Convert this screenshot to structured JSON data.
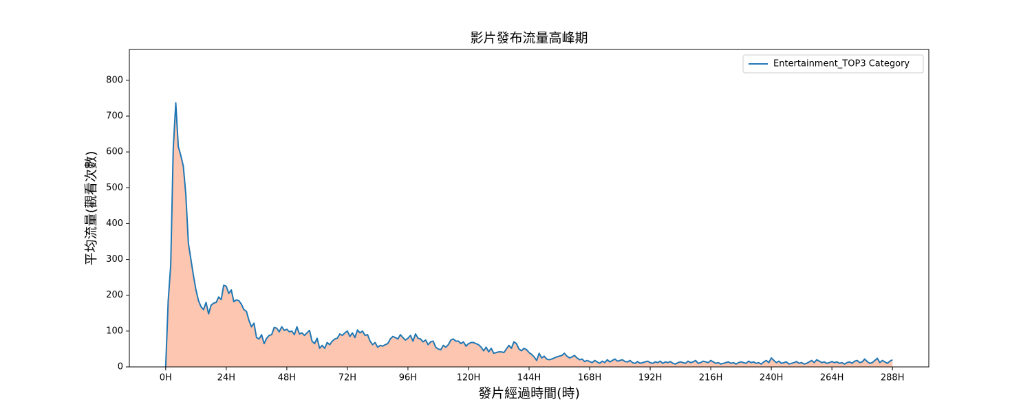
{
  "chart_data": {
    "type": "area",
    "title": "影片發布流量高峰期",
    "x_label": "發片經過時間(時)",
    "y_label": "平均流量(觀看次數)",
    "x": [
      0,
      1,
      2,
      3,
      4,
      5,
      6,
      7,
      8,
      9,
      10,
      11,
      12,
      13,
      14,
      15,
      16,
      17,
      18,
      19,
      20,
      21,
      22,
      23,
      24,
      25,
      26,
      27,
      28,
      29,
      30,
      31,
      32,
      33,
      34,
      35,
      36,
      37,
      38,
      39,
      40,
      41,
      42,
      43,
      44,
      45,
      46,
      47,
      48,
      49,
      50,
      51,
      52,
      53,
      54,
      55,
      56,
      57,
      58,
      59,
      60,
      61,
      62,
      63,
      64,
      65,
      66,
      67,
      68,
      69,
      70,
      71,
      72,
      73,
      74,
      75,
      76,
      77,
      78,
      79,
      80,
      81,
      82,
      83,
      84,
      85,
      86,
      87,
      88,
      89,
      90,
      91,
      92,
      93,
      94,
      95,
      96,
      97,
      98,
      99,
      100,
      101,
      102,
      103,
      104,
      105,
      106,
      107,
      108,
      109,
      110,
      111,
      112,
      113,
      114,
      115,
      116,
      117,
      118,
      119,
      120,
      121,
      122,
      123,
      124,
      125,
      126,
      127,
      128,
      129,
      130,
      131,
      132,
      133,
      134,
      135,
      136,
      137,
      138,
      139,
      140,
      141,
      142,
      143,
      144,
      145,
      146,
      147,
      148,
      149,
      150,
      151,
      152,
      153,
      154,
      155,
      156,
      157,
      158,
      159,
      160,
      161,
      162,
      163,
      164,
      165,
      166,
      167,
      168,
      169,
      170,
      171,
      172,
      173,
      174,
      175,
      176,
      177,
      178,
      179,
      180,
      181,
      182,
      183,
      184,
      185,
      186,
      187,
      188,
      189,
      190,
      191,
      192,
      193,
      194,
      195,
      196,
      197,
      198,
      199,
      200,
      201,
      202,
      203,
      204,
      205,
      206,
      207,
      208,
      209,
      210,
      211,
      212,
      213,
      214,
      215,
      216,
      217,
      218,
      219,
      220,
      221,
      222,
      223,
      224,
      225,
      226,
      227,
      228,
      229,
      230,
      231,
      232,
      233,
      234,
      235,
      236,
      237,
      238,
      239,
      240,
      241,
      242,
      243,
      244,
      245,
      246,
      247,
      248,
      249,
      250,
      251,
      252,
      253,
      254,
      255,
      256,
      257,
      258,
      259,
      260,
      261,
      262,
      263,
      264,
      265,
      266,
      267,
      268,
      269,
      270,
      271,
      272,
      273,
      274,
      275,
      276,
      277,
      278,
      279,
      280,
      281,
      282,
      283,
      284,
      285,
      286,
      287,
      288
    ],
    "series": [
      {
        "name": "Entertainment_TOP3 Category",
        "color": "#1f77b4",
        "fill": "#fcc6b0",
        "values": [
          0,
          185,
          285,
          610,
          737,
          615,
          590,
          560,
          480,
          345,
          300,
          255,
          215,
          185,
          168,
          160,
          180,
          148,
          172,
          178,
          180,
          195,
          188,
          228,
          225,
          205,
          215,
          182,
          187,
          185,
          175,
          160,
          155,
          130,
          112,
          122,
          82,
          78,
          90,
          65,
          80,
          88,
          90,
          110,
          108,
          98,
          112,
          102,
          105,
          98,
          100,
          90,
          112,
          92,
          95,
          88,
          95,
          102,
          72,
          65,
          80,
          52,
          60,
          52,
          68,
          62,
          72,
          78,
          80,
          92,
          88,
          95,
          100,
          85,
          95,
          82,
          103,
          95,
          100,
          88,
          90,
          72,
          62,
          68,
          55,
          60,
          58,
          62,
          65,
          78,
          85,
          82,
          78,
          90,
          82,
          75,
          80,
          88,
          72,
          92,
          80,
          78,
          70,
          75,
          62,
          70,
          72,
          55,
          50,
          48,
          60,
          55,
          62,
          75,
          78,
          72,
          72,
          65,
          70,
          58,
          65,
          68,
          68,
          65,
          62,
          55,
          45,
          55,
          42,
          52,
          38,
          40,
          42,
          42,
          40,
          50,
          60,
          52,
          70,
          65,
          50,
          45,
          52,
          48,
          40,
          35,
          28,
          18,
          38,
          25,
          30,
          22,
          20,
          22,
          25,
          28,
          30,
          32,
          38,
          30,
          25,
          28,
          32,
          25,
          20,
          22,
          15,
          18,
          15,
          12,
          18,
          14,
          10,
          16,
          12,
          20,
          14,
          18,
          22,
          16,
          18,
          20,
          15,
          14,
          18,
          12,
          10,
          15,
          10,
          12,
          14,
          16,
          12,
          10,
          14,
          12,
          16,
          10,
          14,
          12,
          15,
          10,
          8,
          12,
          14,
          12,
          10,
          16,
          12,
          14,
          18,
          10,
          12,
          16,
          14,
          12,
          18,
          14,
          10,
          12,
          8,
          10,
          12,
          14,
          10,
          12,
          8,
          12,
          14,
          12,
          10,
          16,
          12,
          14,
          10,
          12,
          8,
          14,
          18,
          12,
          25,
          18,
          12,
          16,
          10,
          12,
          14,
          8,
          10,
          12,
          15,
          10,
          12,
          8,
          10,
          14,
          18,
          12,
          20,
          16,
          12,
          14,
          10,
          12,
          15,
          12,
          14,
          10,
          12,
          8,
          12,
          14,
          10,
          16,
          18,
          12,
          14,
          22,
          15,
          10,
          12,
          18,
          24,
          12,
          18,
          14,
          10,
          16,
          20
        ]
      }
    ],
    "xlim": [
      -14.4,
      302.4
    ],
    "ylim": [
      0,
      886
    ],
    "xticks": [
      {
        "value": 0,
        "label": "0H"
      },
      {
        "value": 24,
        "label": "24H"
      },
      {
        "value": 48,
        "label": "48H"
      },
      {
        "value": 72,
        "label": "72H"
      },
      {
        "value": 96,
        "label": "96H"
      },
      {
        "value": 120,
        "label": "120H"
      },
      {
        "value": 144,
        "label": "144H"
      },
      {
        "value": 168,
        "label": "168H"
      },
      {
        "value": 192,
        "label": "192H"
      },
      {
        "value": 216,
        "label": "216H"
      },
      {
        "value": 240,
        "label": "240H"
      },
      {
        "value": 264,
        "label": "264H"
      },
      {
        "value": 288,
        "label": "288H"
      }
    ],
    "yticks": [
      0,
      100,
      200,
      300,
      400,
      500,
      600,
      700,
      800
    ],
    "legend": "upper right"
  }
}
